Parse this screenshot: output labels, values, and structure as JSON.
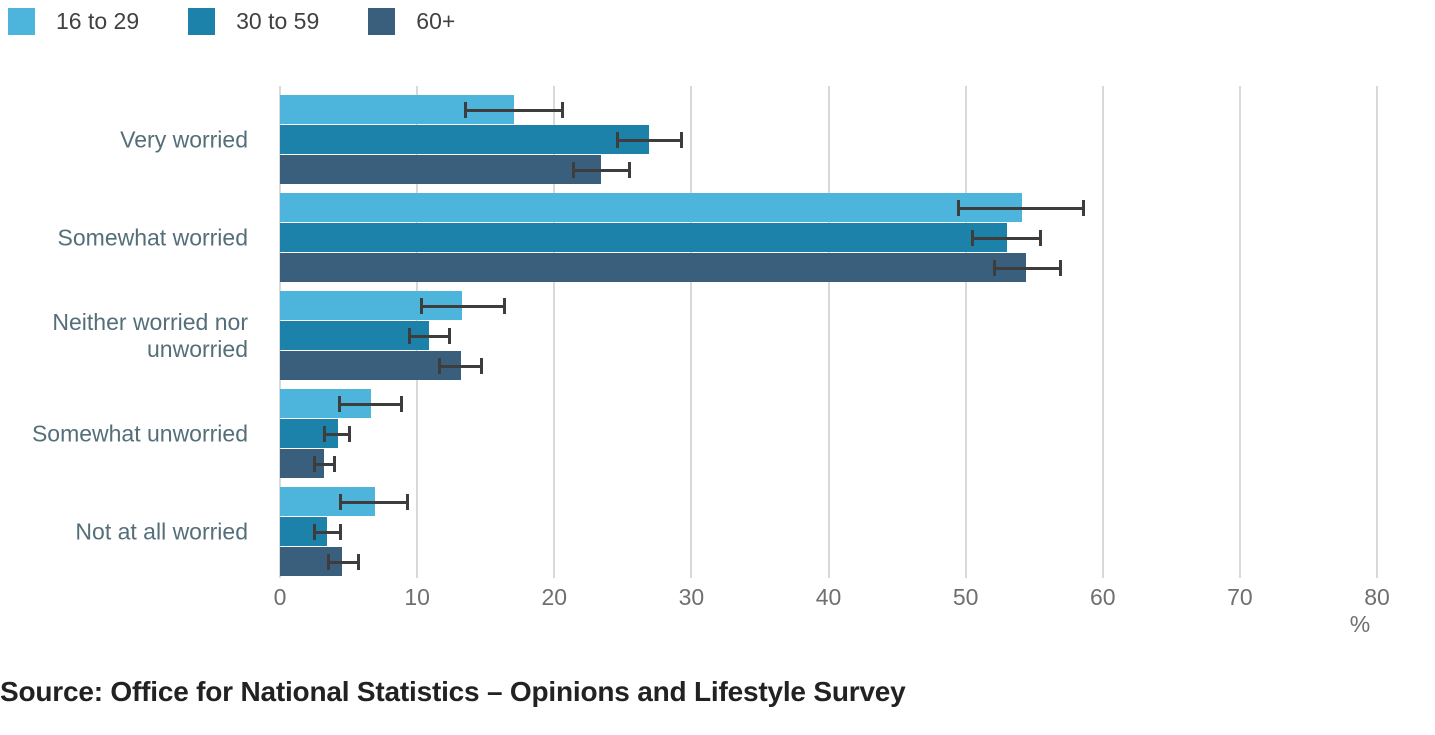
{
  "legend": {
    "items": [
      {
        "label": "16 to 29",
        "color": "#4DB4DC"
      },
      {
        "label": "30 to 59",
        "color": "#1C82AA"
      },
      {
        "label": "60+",
        "color": "#3A5F7D"
      }
    ]
  },
  "chart_data": {
    "type": "bar",
    "orientation": "horizontal",
    "title": "",
    "xlabel": "%",
    "ylabel": "",
    "xlim": [
      0,
      80
    ],
    "x_ticks": [
      0,
      10,
      20,
      30,
      40,
      50,
      60,
      70,
      80
    ],
    "grid": "vertical",
    "legend_position": "top-left",
    "error_bars": true,
    "categories": [
      "Very worried",
      "Somewhat worried",
      "Neither worried nor unworried",
      "Somewhat unworried",
      "Not at all worried"
    ],
    "series": [
      {
        "name": "16 to 29",
        "color": "#4DB4DC",
        "values": [
          17.1,
          54.1,
          13.3,
          6.6,
          6.9
        ],
        "ci_low": [
          13.4,
          49.4,
          10.2,
          4.2,
          4.3
        ],
        "ci_high": [
          20.7,
          58.7,
          16.5,
          9.0,
          9.4
        ]
      },
      {
        "name": "30 to 59",
        "color": "#1C82AA",
        "values": [
          26.9,
          53.0,
          10.9,
          4.2,
          3.4
        ],
        "ci_low": [
          24.5,
          50.4,
          9.3,
          3.1,
          2.4
        ],
        "ci_high": [
          29.4,
          55.6,
          12.5,
          5.2,
          4.5
        ]
      },
      {
        "name": "60+",
        "color": "#3A5F7D",
        "values": [
          23.4,
          54.4,
          13.2,
          3.2,
          4.5
        ],
        "ci_low": [
          21.3,
          52.0,
          11.5,
          2.4,
          3.4
        ],
        "ci_high": [
          25.6,
          57.0,
          14.8,
          4.1,
          5.8
        ]
      }
    ],
    "errorbar_color": "#3d3d3d",
    "gridline_color": "#d9d9d9"
  },
  "source": {
    "text": "Source: Office for National Statistics – Opinions and Lifestyle Survey"
  }
}
